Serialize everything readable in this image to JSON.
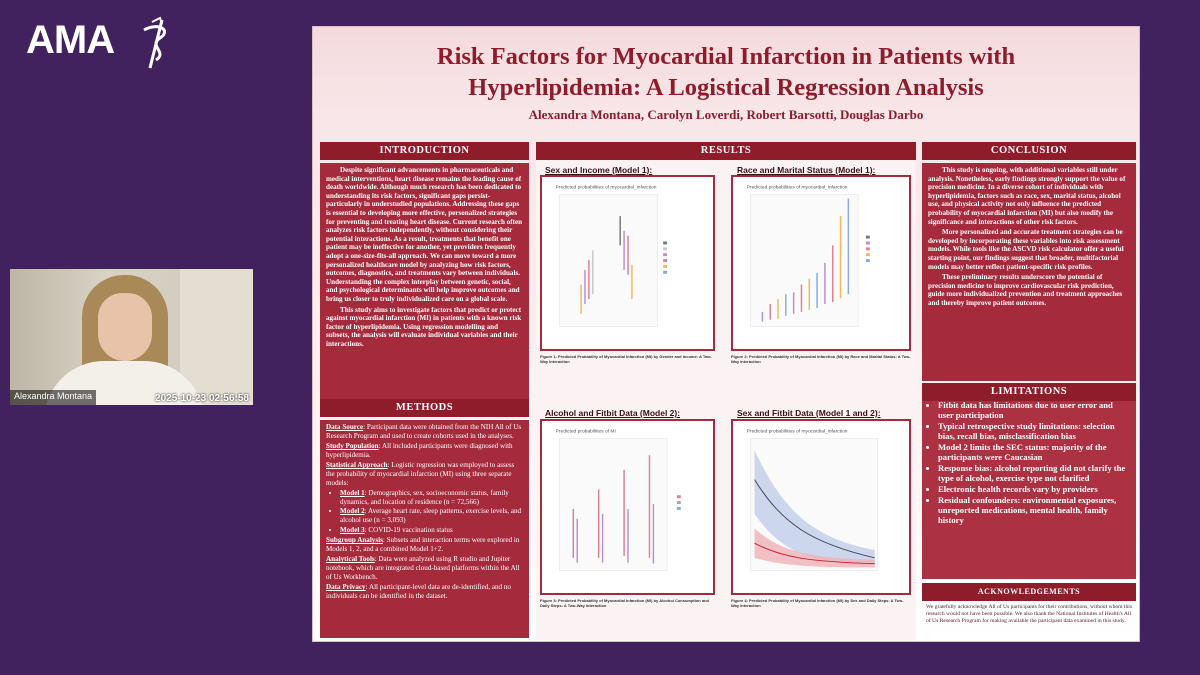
{
  "logo": {
    "text": "AMA"
  },
  "video": {
    "name": "Alexandra Montana",
    "timestamp": "2025-10-23  02:56:58"
  },
  "poster": {
    "title_line1": "Risk Factors for Myocardial Infarction in Patients with",
    "title_line2": "Hyperlipidemia: A Logistical Regression Analysis",
    "authors": "Alexandra Montana, Carolyn Loverdi, Robert Barsotti, Douglas Darbo",
    "introduction": {
      "heading": "INTRODUCTION",
      "p1": "Despite significant advancements in pharmaceuticals and medical interventions, heart disease remains the leading cause of death worldwide. Although much research has been dedicated to understanding its risk factors, significant gaps persist-particularly in understudied populations. Addressing these gaps is essential to developing more effective, personalized strategies for preventing and treating heart disease. Current research often analyzes risk factors independently, without considering their potential interactions. As a result, treatments that benefit one patient may be ineffective for another, yet providers frequently adopt a one-size-fits-all approach. We can move toward a more personalized healthcare model by analyzing how risk factors, outcomes, diagnostics, and treatments vary between individuals. Understanding the complex interplay between genetic, social, and psychological determinants will help improve outcomes and bring us closer to truly individualized care on a global scale.",
      "p2": "This study aims to investigate factors that predict or protect against myocardial infarction (MI) in patients with a known risk factor of hyperlipidemia. Using regression modelling and subsets, the analysis will evaluate individual variables and their interactions."
    },
    "methods": {
      "heading": "METHODS",
      "data_source_label": "Data Source",
      "data_source": ": Participant data were obtained from the NIH All of Us Research Program and used to create cohorts used in the analyses.",
      "study_pop_label": "Study Population",
      "study_pop": ": All included participants were diagnosed with hyperlipidemia.",
      "stat_label": "Statistical Approach",
      "stat": ": Logistic regression was employed to assess the probability of myocardial infarction (MI) using three separate models:",
      "model1_label": "Model 1",
      "model1": ": Demographics, sex, socioeconomic status, family dynamics, and location of residence (n = 72,566)",
      "model2_label": "Model 2",
      "model2": ": Average heart rate, sleep patterns, exercise levels, and alcohol use (n = 3,093)",
      "model3_label": "Model 3",
      "model3": ": COVID-19 vaccination status",
      "subgroup_label": "Subgroup Analysis",
      "subgroup": ": Subsets and interaction terms were explored in Models 1, 2, and a combined Model 1+2.",
      "tools_label": "Analytical Tools",
      "tools": ": Data were analyzed using R studio and Jupiter notebook, which are integrated cloud-based platforms within the All of Us Workbench.",
      "privacy_label": "Data Privacy",
      "privacy": ": All participant-level data are de-identified, and no individuals can be identified in the dataset."
    },
    "results": {
      "heading": "RESULTS",
      "plot1_title": "Sex and Income (Model 1):",
      "plot1_inner": "Predicted probabilities of myocardial_infarction",
      "plot2_title": "Race and Marital Status (Model 1):",
      "plot2_inner": "Predicted probabilities of myocardial_infarction",
      "plot3_title": "Alcohol and Fitbit Data (Model 2):",
      "plot3_inner": "Predicted probabilities of MI",
      "plot4_title": "Sex and Fitbit Data (Model 1 and 2):",
      "plot4_inner": "Predicted probabilities of myocardial_infarction",
      "cap1": "Figure 1: Predicted Probability of Myocardial Infarction (MI) by Gender and Income: A Two-Way Interaction",
      "cap2": "Figure 2: Predicted Probability of Myocardial Infarction (MI) by Race and Marital Status: A Two-Way Interaction",
      "cap3": "Figure 3: Predicted Probability of Myocardial Infarction (MI) by Alcohol Consumption and Daily Steps: A Two-Way Interaction",
      "cap4": "Figure 4: Predicted Probability of Myocardial Infarction (MI) by Sex and Daily Steps: A Two-Way Interaction"
    },
    "conclusion": {
      "heading": "CONCLUSION",
      "p1": "This study is ongoing, with additional variables still under analysis. Nonetheless, early findings strongly support the value of precision medicine. In a diverse cohort of individuals with hyperlipidemia, factors such as race, sex, marital status, alcohol use, and physical activity not only influence the predicted probability of myocardial infarction (MI) but also modify the significance and interactions of other risk factors.",
      "p2": "More personalized and accurate treatment strategies can be developed by incorporating these variables into risk assessment models. While tools like the ASCVD risk calculator offer a useful starting point, our findings suggest that broader, multifactorial models may better reflect patient-specific risk profiles.",
      "p3": "These preliminary results underscore the potential of precision medicine to improve cardiovascular risk prediction, guide more individualized prevention and treatment approaches and thereby improve patient outcomes."
    },
    "limitations": {
      "heading": "LIMITATIONS",
      "items": [
        "Fitbit data has limitations due to user error and user participation",
        "Typical retrospective study limitations: selection bias, recall bias, misclassification bias",
        "Model 2 limits the SEC status: majority of the participants were Caucasian",
        "Response bias: alcohol reporting did not clarify the type of alcohol, exercise type not clarified",
        "Electronic health records vary by providers",
        "Residual confounders: environmental exposures, unreported medications, mental health, family history"
      ]
    },
    "acknowledgements": {
      "heading": "ACKNOWLEDGEMENTS",
      "text": "We gratefully acknowledge All of Us participants for their contributions, without whom this research would not have been possible. We also thank the National Institutes of Health's All of Us Research Program for making available the participant data examined in this study."
    }
  },
  "colors": {
    "accent": "#8e1c2b",
    "column": "#a52a3c",
    "background": "#41225f"
  }
}
